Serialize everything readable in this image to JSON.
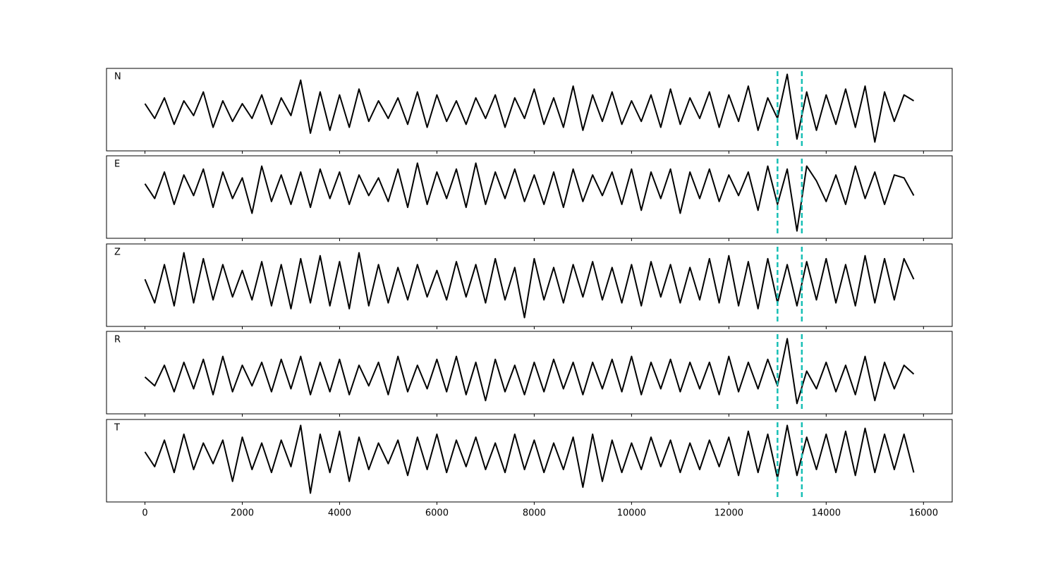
{
  "chart_data": {
    "type": "line",
    "x": [
      0,
      200,
      400,
      600,
      800,
      1000,
      1200,
      1400,
      1600,
      1800,
      2000,
      2200,
      2400,
      2600,
      2800,
      3000,
      3200,
      3400,
      3600,
      3800,
      4000,
      4200,
      4400,
      4600,
      4800,
      5000,
      5200,
      5400,
      5600,
      5800,
      6000,
      6200,
      6400,
      6600,
      6800,
      7000,
      7200,
      7400,
      7600,
      7800,
      8000,
      8200,
      8400,
      8600,
      8800,
      9000,
      9200,
      9400,
      9600,
      9800,
      10000,
      10200,
      10400,
      10600,
      10800,
      11000,
      11200,
      11400,
      11600,
      11800,
      12000,
      12200,
      12400,
      12600,
      12800,
      13000,
      13200,
      13400,
      13600,
      13800,
      14000,
      14200,
      14400,
      14600,
      14800,
      15000,
      15200,
      15400,
      15600,
      15800
    ],
    "xlim": [
      -790,
      16590
    ],
    "xticks": [
      0,
      2000,
      4000,
      6000,
      8000,
      10000,
      12000,
      14000,
      16000
    ],
    "markers": [
      13000,
      13500
    ],
    "marker_color": "#17bfb5",
    "line_color": "#000000",
    "panels": [
      {
        "label": "N",
        "ylim": [
          -1.4,
          1.4
        ],
        "values": [
          0.2,
          -0.3,
          0.4,
          -0.5,
          0.3,
          -0.2,
          0.6,
          -0.6,
          0.3,
          -0.4,
          0.2,
          -0.3,
          0.5,
          -0.5,
          0.4,
          -0.2,
          1.0,
          -0.8,
          0.6,
          -0.7,
          0.5,
          -0.6,
          0.7,
          -0.4,
          0.3,
          -0.3,
          0.4,
          -0.5,
          0.6,
          -0.6,
          0.5,
          -0.4,
          0.3,
          -0.5,
          0.4,
          -0.3,
          0.5,
          -0.6,
          0.4,
          -0.3,
          0.7,
          -0.5,
          0.4,
          -0.6,
          0.8,
          -0.7,
          0.5,
          -0.4,
          0.6,
          -0.5,
          0.3,
          -0.4,
          0.5,
          -0.6,
          0.7,
          -0.5,
          0.4,
          -0.3,
          0.6,
          -0.6,
          0.5,
          -0.4,
          0.8,
          -0.7,
          0.4,
          -0.3,
          1.2,
          -1.0,
          0.6,
          -0.7,
          0.5,
          -0.5,
          0.7,
          -0.6,
          0.8,
          -1.1,
          0.6,
          -0.4,
          0.5,
          0.3
        ]
      },
      {
        "label": "E",
        "ylim": [
          -1.75,
          1.05
        ],
        "values": [
          0.1,
          -0.4,
          0.5,
          -0.6,
          0.4,
          -0.3,
          0.6,
          -0.7,
          0.5,
          -0.4,
          0.3,
          -0.9,
          0.7,
          -0.5,
          0.4,
          -0.6,
          0.5,
          -0.7,
          0.6,
          -0.4,
          0.5,
          -0.6,
          0.4,
          -0.3,
          0.3,
          -0.5,
          0.6,
          -0.7,
          0.8,
          -0.6,
          0.5,
          -0.4,
          0.6,
          -0.7,
          0.8,
          -0.6,
          0.5,
          -0.4,
          0.6,
          -0.5,
          0.4,
          -0.6,
          0.5,
          -0.7,
          0.6,
          -0.5,
          0.4,
          -0.3,
          0.5,
          -0.6,
          0.6,
          -0.8,
          0.5,
          -0.4,
          0.6,
          -0.9,
          0.5,
          -0.4,
          0.6,
          -0.5,
          0.4,
          -0.3,
          0.5,
          -0.8,
          0.7,
          -0.6,
          0.6,
          -1.5,
          0.7,
          0.2,
          -0.5,
          0.4,
          -0.6,
          0.7,
          -0.4,
          0.5,
          -0.6,
          0.4,
          0.3,
          -0.3
        ]
      },
      {
        "label": "Z",
        "ylim": [
          -1.5,
          1.3
        ],
        "values": [
          0.1,
          -0.7,
          0.6,
          -0.8,
          1.0,
          -0.7,
          0.8,
          -0.6,
          0.6,
          -0.5,
          0.4,
          -0.6,
          0.7,
          -0.8,
          0.6,
          -0.9,
          0.8,
          -0.7,
          0.9,
          -0.8,
          0.7,
          -0.9,
          1.0,
          -0.8,
          0.6,
          -0.7,
          0.5,
          -0.6,
          0.6,
          -0.5,
          0.4,
          -0.6,
          0.7,
          -0.5,
          0.6,
          -0.7,
          0.8,
          -0.6,
          0.5,
          -1.2,
          0.8,
          -0.6,
          0.5,
          -0.7,
          0.6,
          -0.5,
          0.7,
          -0.6,
          0.5,
          -0.7,
          0.6,
          -0.8,
          0.7,
          -0.5,
          0.6,
          -0.7,
          0.5,
          -0.6,
          0.8,
          -0.7,
          0.9,
          -0.8,
          0.7,
          -0.9,
          0.8,
          -0.7,
          0.6,
          -0.8,
          0.7,
          -0.6,
          0.8,
          -0.7,
          0.6,
          -0.8,
          0.9,
          -0.7,
          0.8,
          -0.6,
          0.8,
          0.1
        ]
      },
      {
        "label": "R",
        "ylim": [
          -1.25,
          1.55
        ],
        "values": [
          0.0,
          -0.3,
          0.4,
          -0.5,
          0.5,
          -0.4,
          0.6,
          -0.6,
          0.7,
          -0.5,
          0.4,
          -0.3,
          0.5,
          -0.5,
          0.6,
          -0.4,
          0.7,
          -0.6,
          0.5,
          -0.5,
          0.6,
          -0.6,
          0.4,
          -0.3,
          0.5,
          -0.6,
          0.7,
          -0.5,
          0.4,
          -0.4,
          0.6,
          -0.5,
          0.7,
          -0.6,
          0.5,
          -0.8,
          0.6,
          -0.5,
          0.4,
          -0.6,
          0.5,
          -0.5,
          0.6,
          -0.4,
          0.5,
          -0.6,
          0.5,
          -0.4,
          0.6,
          -0.5,
          0.7,
          -0.6,
          0.5,
          -0.4,
          0.6,
          -0.5,
          0.5,
          -0.4,
          0.5,
          -0.6,
          0.7,
          -0.5,
          0.5,
          -0.4,
          0.6,
          -0.3,
          1.3,
          -0.9,
          0.2,
          -0.4,
          0.5,
          -0.5,
          0.4,
          -0.6,
          0.7,
          -0.8,
          0.5,
          -0.4,
          0.4,
          0.1
        ]
      },
      {
        "label": "T",
        "ylim": [
          -1.6,
          1.2
        ],
        "values": [
          0.1,
          -0.4,
          0.5,
          -0.6,
          0.7,
          -0.5,
          0.4,
          -0.3,
          0.5,
          -0.9,
          0.6,
          -0.5,
          0.4,
          -0.6,
          0.5,
          -0.4,
          1.0,
          -1.3,
          0.7,
          -0.6,
          0.8,
          -0.9,
          0.6,
          -0.5,
          0.4,
          -0.3,
          0.5,
          -0.7,
          0.6,
          -0.5,
          0.7,
          -0.6,
          0.5,
          -0.4,
          0.6,
          -0.5,
          0.4,
          -0.6,
          0.7,
          -0.5,
          0.5,
          -0.6,
          0.4,
          -0.5,
          0.6,
          -1.1,
          0.7,
          -0.9,
          0.5,
          -0.6,
          0.4,
          -0.5,
          0.6,
          -0.4,
          0.5,
          -0.6,
          0.4,
          -0.5,
          0.5,
          -0.4,
          0.6,
          -0.7,
          0.8,
          -0.6,
          0.7,
          -0.8,
          1.0,
          -0.7,
          0.6,
          -0.5,
          0.7,
          -0.6,
          0.8,
          -0.7,
          0.9,
          -0.6,
          0.7,
          -0.5,
          0.7,
          -0.6
        ]
      }
    ]
  }
}
